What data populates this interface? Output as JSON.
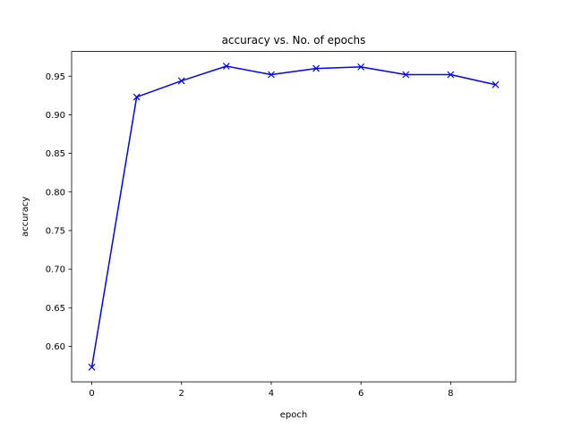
{
  "chart_data": {
    "type": "line",
    "title": "accuracy vs. No. of epochs",
    "xlabel": "epoch",
    "ylabel": "accuracy",
    "xlim": [
      -0.45,
      9.45
    ],
    "ylim": [
      0.554,
      0.982
    ],
    "xticks": [
      0,
      2,
      4,
      6,
      8
    ],
    "xtick_labels": [
      "0",
      "2",
      "4",
      "6",
      "8"
    ],
    "yticks": [
      0.6,
      0.65,
      0.7,
      0.75,
      0.8,
      0.85,
      0.9,
      0.95
    ],
    "ytick_labels": [
      "0.60",
      "0.65",
      "0.70",
      "0.75",
      "0.80",
      "0.85",
      "0.90",
      "0.95"
    ],
    "grid": false,
    "marker": "x",
    "color": "#0000ff",
    "x": [
      0,
      1,
      2,
      3,
      4,
      5,
      6,
      7,
      8,
      9
    ],
    "y": [
      0.573,
      0.923,
      0.944,
      0.963,
      0.952,
      0.96,
      0.962,
      0.952,
      0.952,
      0.939
    ]
  }
}
